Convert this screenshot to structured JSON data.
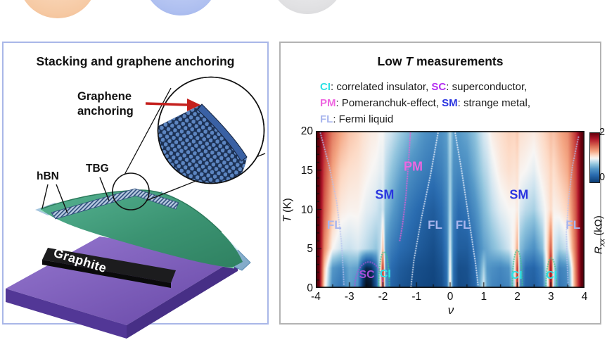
{
  "left_panel": {
    "title": "Stacking and graphene anchoring",
    "anchor_label_line1": "Graphene",
    "anchor_label_line2": "anchoring",
    "hbn_label": "hBN",
    "tbg_label": "TBG",
    "substrate_label": "Graphite"
  },
  "right_panel": {
    "title_pre": "Low ",
    "title_italic": "T",
    "title_post": " measurements",
    "legend_lines": [
      [
        {
          "text": "CI",
          "color": "#2ee0e4",
          "bold": true
        },
        {
          "text": ": correlated insulator, "
        },
        {
          "text": "SC",
          "color": "#b42ef0",
          "bold": true
        },
        {
          "text": ": superconductor,"
        }
      ],
      [
        {
          "text": "PM",
          "color": "#ee66e0",
          "bold": true
        },
        {
          "text": ": Pomeranchuk-effect, "
        },
        {
          "text": "SM",
          "color": "#2a35e0",
          "bold": true
        },
        {
          "text": ": strange metal,"
        }
      ],
      [
        {
          "text": "FL",
          "color": "#a9b6ee",
          "bold": true
        },
        {
          "text": ": Fermi liquid"
        }
      ]
    ]
  },
  "chart_data": {
    "type": "heatmap",
    "title": "Low T measurements",
    "xlabel": "ν",
    "ylabel_T": "T",
    "ylabel_unit": " (K)",
    "colorbar_label_R": "R",
    "colorbar_label_sub": "xx",
    "colorbar_label_unit": " (kΩ)",
    "colorbar_tick_top": "2",
    "colorbar_tick_bottom": "0",
    "colorbar_range": [
      0,
      2
    ],
    "x_range": [
      -4,
      4
    ],
    "y_range": [
      0,
      20
    ],
    "x_major_ticks": [
      -4,
      -3,
      -2,
      -1,
      0,
      1,
      2,
      3,
      4
    ],
    "x_minor_ticks": [
      -3.5,
      -2.5,
      -1.5,
      -0.5,
      0.5,
      1.5,
      2.5,
      3.5
    ],
    "y_major_ticks": [
      0,
      5,
      10,
      15,
      20
    ],
    "y_minor_ticks": [
      1,
      2,
      3,
      4,
      6,
      7,
      8,
      9,
      11,
      12,
      13,
      14,
      16,
      17,
      18,
      19
    ],
    "grid_T": [
      0,
      2.5,
      5,
      10,
      15,
      20
    ],
    "grid_nu": [
      -4.0,
      -3.9,
      -3.75,
      -3.5,
      -3.25,
      -3.0,
      -2.75,
      -2.6,
      -2.5,
      -2.35,
      -2.2,
      -2.08,
      -2.0,
      -1.92,
      -1.75,
      -1.5,
      -1.25,
      -1.0,
      -0.75,
      -0.5,
      -0.25,
      -0.1,
      0.0,
      0.1,
      0.25,
      0.5,
      0.75,
      0.9,
      1.0,
      1.1,
      1.25,
      1.5,
      1.75,
      1.92,
      2.0,
      2.08,
      2.25,
      2.5,
      2.75,
      2.92,
      3.0,
      3.08,
      3.25,
      3.5,
      3.75,
      3.9,
      4.0
    ],
    "values": [
      [
        2.2,
        2.2,
        2.2,
        2.2,
        2.2,
        2.2
      ],
      [
        2.05,
        2.05,
        2.05,
        2.05,
        2.05,
        2.05
      ],
      [
        1.1,
        1.2,
        1.4,
        1.55,
        1.65,
        1.75
      ],
      [
        0.45,
        0.55,
        1.0,
        1.2,
        1.3,
        1.45
      ],
      [
        0.35,
        0.45,
        0.9,
        1.05,
        1.15,
        1.3
      ],
      [
        0.58,
        0.62,
        0.88,
        1.02,
        1.1,
        1.2
      ],
      [
        0.5,
        0.58,
        0.92,
        1.02,
        1.08,
        1.15
      ],
      [
        -0.1,
        0.05,
        0.88,
        0.98,
        1.05,
        1.1
      ],
      [
        -0.3,
        -0.15,
        0.85,
        0.95,
        1.03,
        1.08
      ],
      [
        -0.25,
        -0.1,
        0.8,
        0.93,
        1.0,
        1.05
      ],
      [
        0.15,
        0.25,
        0.75,
        0.9,
        0.98,
        1.04
      ],
      [
        0.9,
        1.0,
        0.85,
        0.85,
        0.95,
        1.0
      ],
      [
        1.85,
        1.75,
        1.25,
        0.9,
        0.95,
        1.0
      ],
      [
        0.55,
        0.5,
        0.55,
        0.72,
        0.85,
        0.95
      ],
      [
        0.25,
        0.3,
        0.4,
        0.6,
        0.75,
        0.9
      ],
      [
        0.15,
        0.2,
        0.3,
        0.45,
        0.62,
        0.8
      ],
      [
        0.1,
        0.15,
        0.25,
        0.37,
        0.52,
        0.7
      ],
      [
        0.08,
        0.1,
        0.2,
        0.3,
        0.45,
        0.62
      ],
      [
        0.05,
        0.08,
        0.15,
        0.25,
        0.4,
        0.52
      ],
      [
        0.03,
        0.05,
        0.1,
        0.2,
        0.36,
        0.47
      ],
      [
        0.1,
        0.14,
        0.2,
        0.3,
        0.42,
        0.52
      ],
      [
        0.3,
        0.33,
        0.38,
        0.45,
        0.52,
        0.58
      ],
      [
        1.12,
        1.05,
        0.95,
        0.85,
        0.8,
        0.85
      ],
      [
        0.3,
        0.3,
        0.35,
        0.42,
        0.5,
        0.58
      ],
      [
        0.08,
        0.1,
        0.2,
        0.3,
        0.46,
        0.56
      ],
      [
        0.1,
        0.12,
        0.2,
        0.35,
        0.5,
        0.62
      ],
      [
        0.25,
        0.3,
        0.35,
        0.5,
        0.65,
        0.75
      ],
      [
        0.68,
        0.58,
        0.5,
        0.62,
        0.76,
        0.86
      ],
      [
        0.95,
        0.8,
        0.58,
        0.7,
        0.82,
        0.92
      ],
      [
        0.6,
        0.55,
        0.62,
        0.76,
        0.86,
        0.96
      ],
      [
        0.45,
        0.5,
        0.7,
        0.85,
        0.95,
        1.05
      ],
      [
        0.4,
        0.45,
        0.8,
        0.95,
        1.05,
        1.1
      ],
      [
        0.45,
        0.52,
        0.9,
        1.0,
        1.1,
        1.15
      ],
      [
        0.85,
        0.95,
        1.05,
        1.0,
        1.08,
        1.14
      ],
      [
        1.85,
        1.75,
        1.3,
        1.05,
        1.1,
        1.18
      ],
      [
        0.5,
        0.6,
        0.72,
        0.92,
        1.02,
        1.1
      ],
      [
        0.25,
        0.3,
        0.6,
        0.85,
        1.0,
        1.08
      ],
      [
        0.2,
        0.25,
        0.5,
        0.8,
        0.95,
        1.05
      ],
      [
        0.35,
        0.42,
        0.72,
        0.95,
        1.05,
        1.12
      ],
      [
        1.0,
        1.2,
        1.2,
        1.05,
        1.1,
        1.18
      ],
      [
        2.05,
        1.95,
        1.6,
        1.12,
        1.15,
        1.22
      ],
      [
        0.8,
        0.9,
        0.92,
        1.02,
        1.1,
        1.2
      ],
      [
        0.35,
        0.42,
        0.8,
        1.05,
        1.18,
        1.28
      ],
      [
        0.45,
        0.5,
        0.9,
        1.15,
        1.28,
        1.38
      ],
      [
        1.45,
        1.5,
        1.55,
        1.6,
        1.65,
        1.72
      ],
      [
        2.05,
        2.05,
        2.05,
        2.05,
        2.05,
        2.05
      ],
      [
        2.2,
        2.2,
        2.2,
        2.2,
        2.2,
        2.2
      ]
    ],
    "colormap": [
      [
        -0.35,
        "#04060c"
      ],
      [
        0.0,
        "#0e4078"
      ],
      [
        0.3,
        "#2a6cb0"
      ],
      [
        0.55,
        "#5598c8"
      ],
      [
        0.75,
        "#92c5de"
      ],
      [
        0.9,
        "#d1e5f0"
      ],
      [
        1.0,
        "#f8f6f4"
      ],
      [
        1.12,
        "#fddbc7"
      ],
      [
        1.3,
        "#f4a582"
      ],
      [
        1.55,
        "#d6604d"
      ],
      [
        1.8,
        "#b2182b"
      ],
      [
        2.05,
        "#67000d"
      ],
      [
        2.3,
        "#430008"
      ]
    ],
    "phase_labels": [
      {
        "text": "FL",
        "nu": -3.45,
        "T": 8.0,
        "color": "#a9b6ee",
        "size": 17
      },
      {
        "text": "SM",
        "nu": -1.95,
        "T": 11.8,
        "color": "#2a35e0",
        "size": 18
      },
      {
        "text": "PM",
        "nu": -1.1,
        "T": 15.4,
        "color": "#ee66e0",
        "size": 18
      },
      {
        "text": "FL",
        "nu": -0.45,
        "T": 8.0,
        "color": "#a9b6ee",
        "size": 17
      },
      {
        "text": "FL",
        "nu": 0.38,
        "T": 8.0,
        "color": "#a9b6ee",
        "size": 17
      },
      {
        "text": "SM",
        "nu": 2.05,
        "T": 11.8,
        "color": "#2a35e0",
        "size": 18
      },
      {
        "text": "FL",
        "nu": 3.66,
        "T": 8.0,
        "color": "#a9b6ee",
        "size": 17
      },
      {
        "text": "SC",
        "nu": -2.48,
        "T": 1.6,
        "color": "#a84fd8",
        "size": 16
      },
      {
        "text": "CI",
        "nu": -1.93,
        "T": 1.7,
        "color": "#2ee0e4",
        "size": 16
      },
      {
        "text": "CI",
        "nu": 1.98,
        "T": 1.5,
        "color": "#2ee0e4",
        "size": 16
      },
      {
        "text": "CI",
        "nu": 3.02,
        "T": 1.5,
        "color": "#2ee0e4",
        "size": 16
      }
    ],
    "boundaries": [
      {
        "type": "line",
        "color": "#b7c2f0",
        "points": [
          [
            -3.88,
            20
          ],
          [
            -3.6,
            15.5
          ],
          [
            -3.38,
            11
          ],
          [
            -3.24,
            6
          ],
          [
            -3.18,
            2
          ],
          [
            -3.16,
            0
          ]
        ]
      },
      {
        "type": "line",
        "color": "#ea5fd6",
        "points": [
          [
            -1.18,
            20
          ],
          [
            -1.24,
            16
          ],
          [
            -1.32,
            11.5
          ],
          [
            -1.42,
            8
          ],
          [
            -1.5,
            6
          ]
        ]
      },
      {
        "type": "line",
        "color": "#eef2fc",
        "points": [
          [
            -0.35,
            20
          ],
          [
            -0.58,
            14.5
          ],
          [
            -0.85,
            9
          ],
          [
            -1.08,
            3.5
          ],
          [
            -1.17,
            0
          ]
        ]
      },
      {
        "type": "line",
        "color": "#eef2fc",
        "points": [
          [
            0.14,
            20
          ],
          [
            0.34,
            15
          ],
          [
            0.55,
            9
          ],
          [
            0.76,
            3
          ],
          [
            0.84,
            0
          ]
        ]
      },
      {
        "type": "line",
        "color": "#b7c2f0",
        "points": [
          [
            3.82,
            19.2
          ],
          [
            3.64,
            15.5
          ],
          [
            3.52,
            11
          ],
          [
            3.46,
            7
          ],
          [
            3.48,
            3.5
          ],
          [
            3.52,
            0
          ]
        ]
      },
      {
        "type": "dome",
        "color": "#a855d8",
        "cx": -2.42,
        "rx": 0.42,
        "top": 3.3
      },
      {
        "type": "dome",
        "color": "#3ec28f",
        "cx": -1.97,
        "rx": 0.16,
        "top": 4.6
      },
      {
        "type": "dome",
        "color": "#3ec28f",
        "cx": 2.0,
        "rx": 0.15,
        "top": 4.8
      },
      {
        "type": "dome",
        "color": "#3ec28f",
        "cx": 3.01,
        "rx": 0.16,
        "top": 3.8
      }
    ]
  }
}
